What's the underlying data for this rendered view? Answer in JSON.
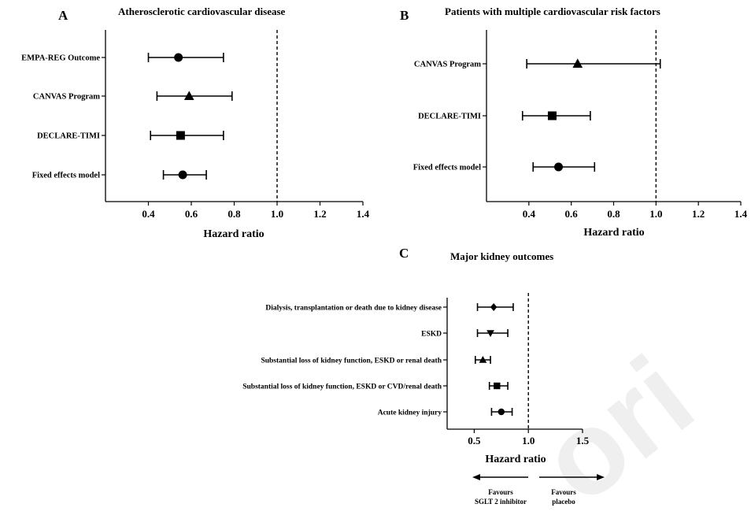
{
  "watermark": "ori",
  "chart_data": [
    {
      "id": "A",
      "type": "forest",
      "panel_letter": "A",
      "title": "Atherosclerotic cardiovascular disease",
      "xlabel": "Hazard ratio",
      "xlim": [
        0.2,
        1.4
      ],
      "xticks": [
        "0.4",
        "0.6",
        "0.8",
        "1.0",
        "1.2",
        "1.4"
      ],
      "reference_line": 1.0,
      "rows": [
        {
          "label": "EMPA-REG Outcome",
          "hr": 0.54,
          "lo": 0.4,
          "hi": 0.75,
          "marker": "circle"
        },
        {
          "label": "CANVAS Program",
          "hr": 0.59,
          "lo": 0.44,
          "hi": 0.79,
          "marker": "triangle"
        },
        {
          "label": "DECLARE-TIMI",
          "hr": 0.55,
          "lo": 0.41,
          "hi": 0.75,
          "marker": "square"
        },
        {
          "label": "Fixed effects model",
          "hr": 0.56,
          "lo": 0.47,
          "hi": 0.67,
          "marker": "circle"
        }
      ]
    },
    {
      "id": "B",
      "type": "forest",
      "panel_letter": "B",
      "title": "Patients with multiple cardiovascular risk factors",
      "xlabel": "Hazard ratio",
      "xlim": [
        0.2,
        1.4
      ],
      "xticks": [
        "0.4",
        "0.6",
        "0.8",
        "1.0",
        "1.2",
        "1.4"
      ],
      "reference_line": 1.0,
      "rows": [
        {
          "label": "CANVAS Program",
          "hr": 0.63,
          "lo": 0.39,
          "hi": 1.02,
          "marker": "triangle"
        },
        {
          "label": "DECLARE-TIMI",
          "hr": 0.51,
          "lo": 0.37,
          "hi": 0.69,
          "marker": "square"
        },
        {
          "label": "Fixed effects model",
          "hr": 0.54,
          "lo": 0.42,
          "hi": 0.71,
          "marker": "circle"
        }
      ]
    },
    {
      "id": "C",
      "type": "forest",
      "panel_letter": "C",
      "title": "Major kidney outcomes",
      "xlabel": "Hazard ratio",
      "xlim": [
        0.25,
        1.5
      ],
      "xticks": [
        "0.5",
        "1.0",
        "1.5"
      ],
      "reference_line": 1.0,
      "rows": [
        {
          "label": "Dialysis, transplantation or death due to kidney disease",
          "hr": 0.68,
          "lo": 0.53,
          "hi": 0.86,
          "marker": "diamond"
        },
        {
          "label": "ESKD",
          "hr": 0.65,
          "lo": 0.53,
          "hi": 0.81,
          "marker": "triangle-down"
        },
        {
          "label": "Substantial loss of kidney function, ESKD or renal death",
          "hr": 0.58,
          "lo": 0.51,
          "hi": 0.65,
          "marker": "triangle"
        },
        {
          "label": "Substantial loss of kidney function, ESKD or CVD/renal death",
          "hr": 0.71,
          "lo": 0.64,
          "hi": 0.81,
          "marker": "square"
        },
        {
          "label": "Acute kidney injury",
          "hr": 0.75,
          "lo": 0.66,
          "hi": 0.85,
          "marker": "circle"
        }
      ],
      "favours_left": [
        "Favours",
        "SGLT 2 inhibitor"
      ],
      "favours_right": [
        "Favours",
        "placebo"
      ]
    }
  ]
}
